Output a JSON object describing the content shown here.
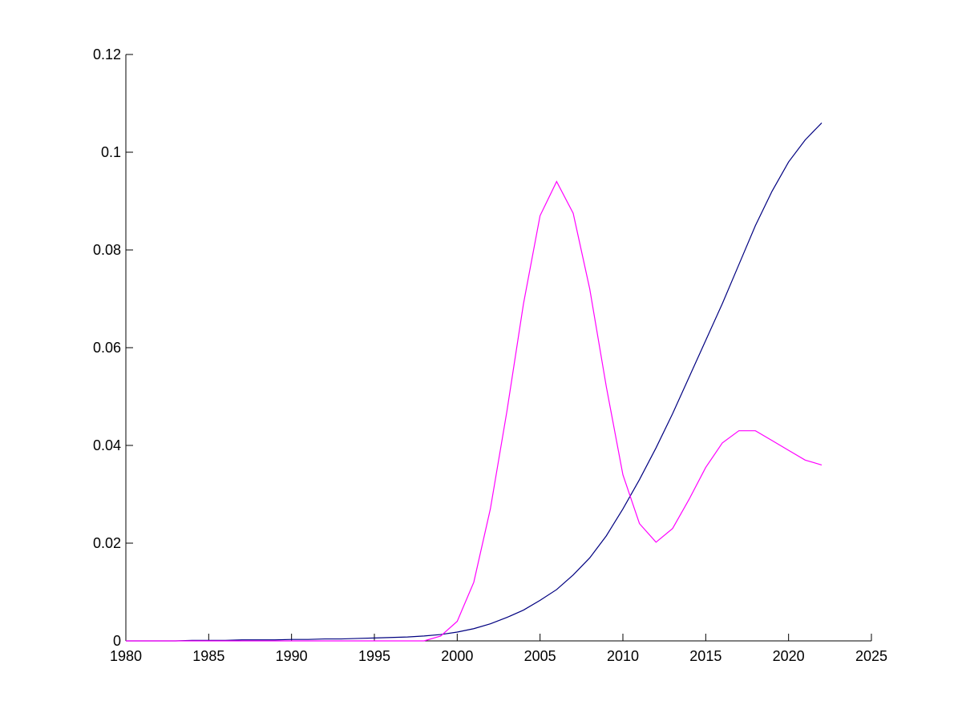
{
  "chart_data": {
    "type": "line",
    "x": [
      1980,
      1981,
      1982,
      1983,
      1984,
      1985,
      1986,
      1987,
      1988,
      1989,
      1990,
      1991,
      1992,
      1993,
      1994,
      1995,
      1996,
      1997,
      1998,
      1999,
      2000,
      2001,
      2002,
      2003,
      2004,
      2005,
      2006,
      2007,
      2008,
      2009,
      2010,
      2011,
      2012,
      2013,
      2014,
      2015,
      2016,
      2017,
      2018,
      2019,
      2020,
      2021,
      2022
    ],
    "series": [
      {
        "color": "#000080",
        "values": [
          0,
          0,
          0,
          0,
          0.0001,
          0.0001,
          0.0001,
          0.0002,
          0.0002,
          0.0002,
          0.0003,
          0.0003,
          0.0004,
          0.0004,
          0.0005,
          0.0006,
          0.0007,
          0.0008,
          0.001,
          0.0013,
          0.0018,
          0.0025,
          0.0035,
          0.0048,
          0.0063,
          0.0083,
          0.0105,
          0.0135,
          0.017,
          0.0215,
          0.027,
          0.033,
          0.0395,
          0.0465,
          0.054,
          0.0615,
          0.069,
          0.077,
          0.085,
          0.092,
          0.098,
          0.1025,
          0.106
        ]
      },
      {
        "color": "#ff00ff",
        "values": [
          0,
          0,
          0,
          0,
          0,
          0,
          0,
          0,
          0,
          0,
          0,
          0,
          0,
          0,
          0,
          0,
          0,
          0,
          0,
          0.001,
          0.004,
          0.012,
          0.027,
          0.047,
          0.069,
          0.087,
          0.094,
          0.0875,
          0.072,
          0.052,
          0.034,
          0.024,
          0.0202,
          0.023,
          0.029,
          0.0355,
          0.0405,
          0.043,
          0.043,
          0.041,
          0.039,
          0.037,
          0.036
        ]
      }
    ],
    "xlim": [
      1980,
      2025
    ],
    "xticks": [
      1980,
      1985,
      1990,
      1995,
      2000,
      2005,
      2010,
      2015,
      2020,
      2025
    ],
    "ylim": [
      0,
      0.12
    ],
    "yticks": [
      0,
      0.02,
      0.04,
      0.06,
      0.08,
      0.1,
      0.12
    ]
  }
}
